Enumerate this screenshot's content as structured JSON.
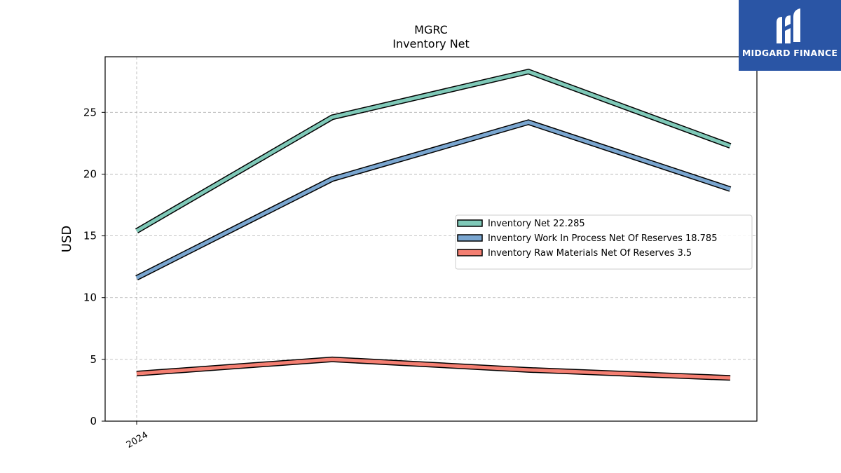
{
  "logo": {
    "text": "MIDGARD FINANCE",
    "icon": "midgard-logo-icon",
    "background": "#2a55a5"
  },
  "chart_data": {
    "type": "line",
    "title": "MGRC",
    "subtitle": "Inventory Net",
    "ylabel": "USD",
    "xlabel": "",
    "ylim": [
      0,
      29.5
    ],
    "yticks": [
      0,
      5,
      10,
      15,
      20,
      25
    ],
    "x": [
      0,
      1,
      2,
      3
    ],
    "xticks": [
      {
        "x": 0,
        "label": "2024"
      }
    ],
    "grid": true,
    "legend_position": "center-right",
    "series": [
      {
        "name": "Inventory Net  22.285",
        "color": "#7fc9b8",
        "values": [
          15.4,
          24.6,
          28.3,
          22.285
        ]
      },
      {
        "name": "Inventory Work In Process Net Of Reserves  18.785",
        "color": "#7aa6d0",
        "values": [
          11.6,
          19.6,
          24.2,
          18.785
        ]
      },
      {
        "name": "Inventory Raw Materials Net Of Reserves  3.5",
        "color": "#f47f72",
        "values": [
          3.85,
          5.0,
          4.15,
          3.5
        ]
      }
    ]
  }
}
